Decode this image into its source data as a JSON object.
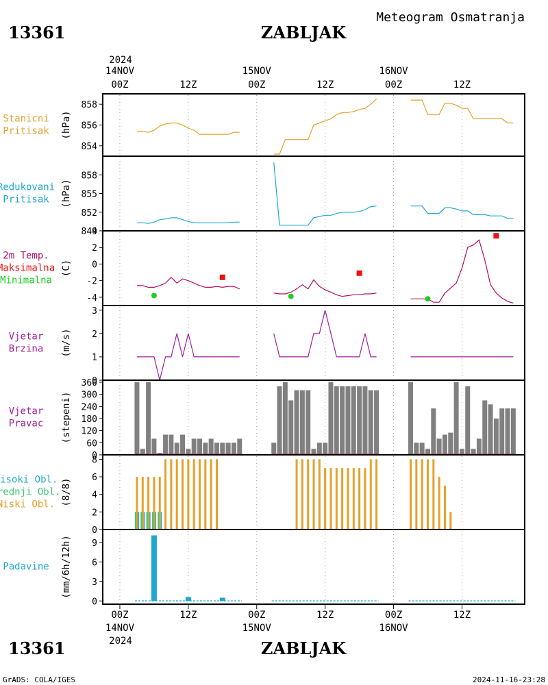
{
  "header": {
    "station_id": "13361",
    "station_name": "ZABLJAK",
    "title": "Meteogram Osmatranja"
  },
  "footer": {
    "station_id": "13361",
    "station_name": "ZABLJAK",
    "credit": "GrADS: COLA/IGES",
    "timestamp": "2024-11-16-23:28"
  },
  "time_axis": {
    "year": "2024",
    "ticks": [
      {
        "hour": 0,
        "day_label": "14NOV",
        "hour_label": "00Z"
      },
      {
        "hour": 12,
        "day_label": "",
        "hour_label": "12Z"
      },
      {
        "hour": 24,
        "day_label": "15NOV",
        "hour_label": "00Z"
      },
      {
        "hour": 36,
        "day_label": "",
        "hour_label": "12Z"
      },
      {
        "hour": 48,
        "day_label": "16NOV",
        "hour_label": "00Z"
      },
      {
        "hour": 60,
        "day_label": "",
        "hour_label": "12Z"
      }
    ],
    "range_hours": [
      -3,
      71
    ]
  },
  "colors": {
    "station_pressure": "#e6a02a",
    "reduced_pressure": "#1ea7d2",
    "temp": "#b40a64",
    "tmax": "#ee1111",
    "tmin": "#22cc22",
    "wind": "#a01ea0",
    "wind_dir": "#808080",
    "high_cloud": "#1ea7d2",
    "mid_cloud": "#3cc878",
    "low_cloud": "#e6a02a",
    "precip": "#1ea7d2"
  },
  "chart_data": [
    {
      "type": "line",
      "panel": "station_pressure",
      "labels": [
        "Stanicni",
        "Pritisak"
      ],
      "ylabel": "(hPa)",
      "ylim": [
        853,
        859
      ],
      "yticks": [
        854,
        856,
        858
      ],
      "series": [
        {
          "x": [
            3,
            4,
            5,
            6,
            7,
            8,
            9,
            10,
            11,
            12,
            13,
            14,
            15,
            16,
            17,
            18,
            19,
            20,
            21,
            27,
            28,
            29,
            30,
            31,
            32,
            33,
            34,
            35,
            36,
            37,
            38,
            39,
            40,
            41,
            42,
            43,
            44,
            45,
            51,
            52,
            53,
            54,
            55,
            56,
            57,
            58,
            59,
            60,
            61,
            62,
            63,
            64,
            65,
            66,
            67,
            68,
            69
          ],
          "y": [
            855.4,
            855.4,
            855.3,
            855.5,
            855.9,
            856.1,
            856.2,
            856.2,
            856.0,
            855.7,
            855.5,
            855.1,
            855.1,
            855.1,
            855.1,
            855.1,
            855.1,
            855.3,
            855.3,
            853.2,
            853.2,
            854.6,
            854.6,
            854.6,
            854.6,
            854.6,
            856.0,
            856.2,
            856.4,
            856.6,
            857.0,
            857.2,
            857.2,
            857.3,
            857.5,
            857.6,
            858.0,
            858.5,
            858.4,
            858.4,
            858.4,
            857.0,
            857.0,
            857.0,
            858.1,
            858.1,
            857.9,
            857.6,
            857.6,
            856.6,
            856.6,
            856.6,
            856.6,
            856.6,
            856.6,
            856.2,
            856.2
          ]
        }
      ]
    },
    {
      "type": "line",
      "panel": "reduced_pressure",
      "labels": [
        "Redukovani",
        "Pritisak"
      ],
      "ylabel": "(hPa)",
      "ylim": [
        849,
        861
      ],
      "yticks": [
        849,
        852,
        855,
        858
      ],
      "series": [
        {
          "x": [
            3,
            4,
            5,
            6,
            7,
            8,
            9,
            10,
            11,
            12,
            13,
            14,
            15,
            16,
            17,
            18,
            19,
            20,
            21,
            27,
            28,
            29,
            30,
            31,
            32,
            33,
            34,
            35,
            36,
            37,
            38,
            39,
            40,
            41,
            42,
            43,
            44,
            45,
            51,
            52,
            53,
            54,
            55,
            56,
            57,
            58,
            59,
            60,
            61,
            62,
            63,
            64,
            65,
            66,
            67,
            68,
            69
          ],
          "y": [
            850.3,
            850.3,
            850.2,
            850.4,
            850.8,
            850.9,
            851.1,
            851.1,
            850.8,
            850.5,
            850.3,
            850.3,
            850.3,
            850.3,
            850.3,
            850.3,
            850.3,
            850.4,
            850.4,
            860.0,
            849.9,
            849.9,
            849.9,
            849.9,
            849.9,
            849.9,
            851.1,
            851.3,
            851.5,
            851.5,
            851.8,
            852.0,
            852.0,
            852.0,
            852.1,
            852.4,
            852.9,
            853.0,
            853.0,
            853.0,
            853.0,
            851.8,
            851.8,
            851.8,
            852.7,
            852.7,
            852.5,
            852.2,
            852.2,
            851.6,
            851.6,
            851.6,
            851.4,
            851.4,
            851.4,
            851.0,
            851.0
          ]
        }
      ]
    },
    {
      "type": "line",
      "panel": "temperature",
      "labels": [
        "2m Temp.",
        "Maksimalna",
        "Minimalna"
      ],
      "ylabel": "(C)",
      "ylim": [
        -5,
        4
      ],
      "yticks": [
        -4,
        -2,
        0,
        2,
        4
      ],
      "series": [
        {
          "name": "2m Temp.",
          "x": [
            3,
            4,
            5,
            6,
            7,
            8,
            9,
            10,
            11,
            12,
            13,
            14,
            15,
            16,
            17,
            18,
            19,
            20,
            21,
            27,
            28,
            29,
            30,
            31,
            32,
            33,
            34,
            35,
            36,
            37,
            38,
            39,
            40,
            41,
            42,
            43,
            44,
            45,
            51,
            52,
            53,
            54,
            55,
            56,
            57,
            58,
            59,
            60,
            61,
            62,
            63,
            64,
            65,
            66,
            67,
            68,
            69
          ],
          "y": [
            -2.6,
            -2.6,
            -2.8,
            -2.8,
            -2.6,
            -2.3,
            -1.6,
            -2.3,
            -1.8,
            -2.0,
            -2.3,
            -2.6,
            -2.8,
            -2.8,
            -2.7,
            -2.8,
            -2.7,
            -2.7,
            -3.0,
            -3.5,
            -3.6,
            -3.6,
            -3.4,
            -3.0,
            -2.5,
            -3.0,
            -1.9,
            -2.7,
            -3.1,
            -3.4,
            -3.7,
            -3.9,
            -3.8,
            -3.7,
            -3.7,
            -3.6,
            -3.6,
            -3.5,
            -4.2,
            -4.2,
            -4.2,
            -4.2,
            -4.6,
            -4.6,
            -3.5,
            -2.9,
            -2.3,
            -0.5,
            2.0,
            2.3,
            2.9,
            0.5,
            -2.5,
            -3.5,
            -4.1,
            -4.5,
            -4.7
          ]
        },
        {
          "name": "Maksimalna",
          "x": [
            18,
            42,
            66
          ],
          "y": [
            -1.6,
            -1.1,
            3.4
          ]
        },
        {
          "name": "Minimalna",
          "x": [
            6,
            30,
            54
          ],
          "y": [
            -3.8,
            -3.9,
            -4.2
          ]
        }
      ]
    },
    {
      "type": "line",
      "panel": "wind_speed",
      "labels": [
        "Vjetar",
        "Brzina"
      ],
      "ylabel": "(m/s)",
      "ylim": [
        0,
        3.2
      ],
      "yticks": [
        0,
        1,
        2,
        3
      ],
      "series": [
        {
          "x": [
            3,
            4,
            5,
            6,
            7,
            8,
            9,
            10,
            11,
            12,
            13,
            14,
            15,
            16,
            17,
            18,
            19,
            20,
            21,
            27,
            28,
            29,
            30,
            31,
            32,
            33,
            34,
            35,
            36,
            37,
            38,
            39,
            40,
            41,
            42,
            43,
            44,
            45,
            51,
            52,
            53,
            54,
            55,
            56,
            57,
            58,
            59,
            60,
            61,
            62,
            63,
            64,
            65,
            66,
            67,
            68,
            69
          ],
          "y": [
            1,
            1,
            1,
            1,
            0,
            1,
            1,
            2,
            1,
            2,
            1,
            1,
            1,
            1,
            1,
            1,
            1,
            1,
            1,
            2,
            1,
            1,
            1,
            1,
            1,
            1,
            2,
            2,
            3,
            2,
            1,
            1,
            1,
            1,
            1,
            2,
            1,
            1,
            1,
            1,
            1,
            1,
            1,
            1,
            1,
            1,
            1,
            1,
            1,
            1,
            1,
            1,
            1,
            1,
            1,
            1,
            1
          ]
        }
      ]
    },
    {
      "type": "bar",
      "panel": "wind_direction",
      "labels": [
        "Vjetar",
        "Pravac"
      ],
      "ylabel": "(stepeni)",
      "ylim": [
        0,
        370
      ],
      "yticks": [
        0,
        60,
        120,
        180,
        240,
        300,
        360
      ],
      "series": [
        {
          "x": [
            3,
            4,
            5,
            6,
            7,
            8,
            9,
            10,
            11,
            12,
            13,
            14,
            15,
            16,
            17,
            18,
            19,
            20,
            21,
            27,
            28,
            29,
            30,
            31,
            32,
            33,
            34,
            35,
            36,
            37,
            38,
            39,
            40,
            41,
            42,
            43,
            44,
            45,
            51,
            52,
            53,
            54,
            55,
            56,
            57,
            58,
            59,
            60,
            61,
            62,
            63,
            64,
            65,
            66,
            67,
            68,
            69
          ],
          "values": [
            360,
            30,
            360,
            80,
            10,
            100,
            100,
            60,
            100,
            30,
            80,
            80,
            60,
            80,
            60,
            60,
            60,
            60,
            80,
            60,
            340,
            360,
            270,
            320,
            320,
            320,
            30,
            60,
            60,
            360,
            340,
            340,
            340,
            340,
            340,
            340,
            320,
            320,
            360,
            60,
            60,
            30,
            230,
            80,
            100,
            110,
            360,
            30,
            340,
            30,
            80,
            270,
            250,
            180,
            230,
            230,
            230
          ]
        }
      ]
    },
    {
      "type": "bar",
      "panel": "cloud_cover",
      "labels": [
        "Visoki Obl.",
        "Srednji Obl.",
        "Niski Obl."
      ],
      "ylabel": "(8/8)",
      "ylim": [
        0,
        8.5
      ],
      "yticks": [
        0,
        2,
        4,
        6,
        8
      ],
      "series": [
        {
          "name": "Niski Obl.",
          "x": [
            3,
            4,
            5,
            6,
            7,
            8,
            9,
            10,
            11,
            12,
            13,
            14,
            15,
            16,
            17,
            18,
            19,
            20,
            21,
            27,
            28,
            29,
            30,
            31,
            32,
            33,
            34,
            35,
            36,
            37,
            38,
            39,
            40,
            41,
            42,
            43,
            44,
            45,
            51,
            52,
            53,
            54,
            55,
            56,
            57,
            58,
            59,
            60,
            61,
            62,
            63,
            64,
            65,
            66,
            67,
            68,
            69
          ],
          "values": [
            6,
            6,
            6,
            6,
            6,
            8,
            8,
            8,
            8,
            8,
            8,
            8,
            8,
            8,
            8,
            0,
            0,
            0,
            0,
            0,
            0,
            0,
            0,
            8,
            8,
            8,
            8,
            8,
            7,
            7,
            7,
            7,
            7,
            7,
            7,
            7,
            8,
            8,
            8,
            8,
            8,
            8,
            8,
            6,
            5,
            2,
            0,
            0,
            0,
            0,
            0,
            0,
            0,
            0,
            0,
            0,
            0
          ]
        },
        {
          "name": "Srednji Obl.",
          "x": [
            3,
            4,
            5,
            6,
            7
          ],
          "values": [
            2,
            2,
            2,
            2,
            2
          ]
        },
        {
          "name": "Visoki Obl.",
          "x": [
            3,
            4,
            5,
            6,
            7
          ],
          "values": [
            2,
            2,
            2,
            2,
            2
          ]
        }
      ]
    },
    {
      "type": "bar",
      "panel": "precipitation",
      "labels": [
        "Padavine"
      ],
      "ylabel": "(mm/6h/12h)",
      "ylim": [
        -0.5,
        11
      ],
      "yticks": [
        0,
        3,
        6,
        9
      ],
      "series": [
        {
          "x": [
            6,
            12,
            18
          ],
          "values": [
            10.1,
            0.6,
            0.5
          ]
        }
      ]
    }
  ]
}
